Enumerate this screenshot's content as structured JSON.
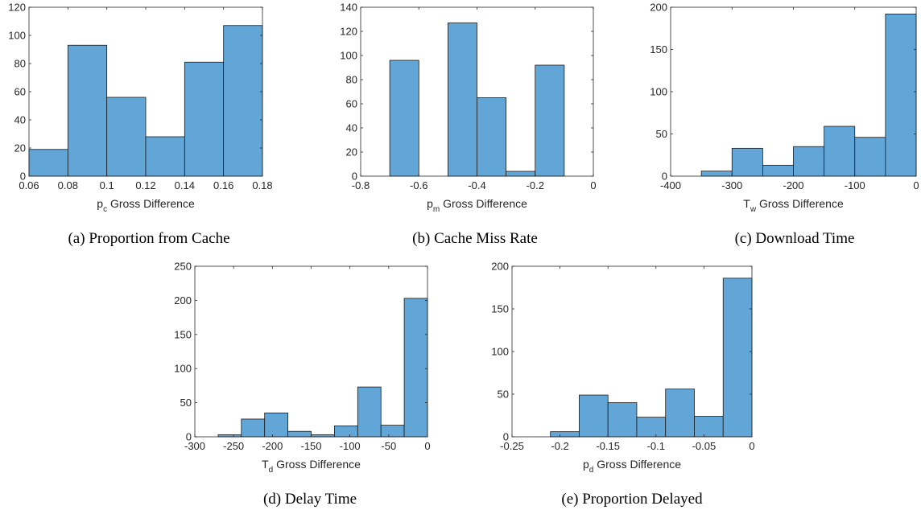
{
  "colors": {
    "bar": "#6baed6",
    "bar_fill": "#61a6d7",
    "edge": "#1a1a1a",
    "axis": "#262626"
  },
  "chart_data": [
    {
      "id": "a",
      "type": "bar",
      "caption": "(a) Proportion from Cache",
      "xlabel": {
        "main": "p",
        "sub": "c",
        "rest": " Gross Difference"
      },
      "xlim": [
        0.06,
        0.18
      ],
      "ylim": [
        0,
        120
      ],
      "xticks": [
        0.06,
        0.08,
        0.1,
        0.12,
        0.14,
        0.16,
        0.18
      ],
      "xtick_labels": [
        "0.06",
        "0.08",
        "0.1",
        "0.12",
        "0.14",
        "0.16",
        "0.18"
      ],
      "yticks": [
        0,
        20,
        40,
        60,
        80,
        100,
        120
      ],
      "ytick_labels": [
        "0",
        "20",
        "40",
        "60",
        "80",
        "100",
        "120"
      ],
      "bins": [
        [
          0.06,
          0.08
        ],
        [
          0.08,
          0.1
        ],
        [
          0.1,
          0.12
        ],
        [
          0.12,
          0.14
        ],
        [
          0.14,
          0.16
        ],
        [
          0.16,
          0.18
        ]
      ],
      "values": [
        19,
        93,
        56,
        28,
        81,
        107
      ]
    },
    {
      "id": "b",
      "type": "bar",
      "caption": "(b) Cache Miss Rate",
      "xlabel": {
        "main": "p",
        "sub": "m",
        "rest": " Gross Difference"
      },
      "xlim": [
        -0.8,
        0
      ],
      "ylim": [
        0,
        140
      ],
      "xticks": [
        -0.8,
        -0.6,
        -0.4,
        -0.2,
        0
      ],
      "xtick_labels": [
        "-0.8",
        "-0.6",
        "-0.4",
        "-0.2",
        "0"
      ],
      "yticks": [
        0,
        20,
        40,
        60,
        80,
        100,
        120,
        140
      ],
      "ytick_labels": [
        "0",
        "20",
        "40",
        "60",
        "80",
        "100",
        "120",
        "140"
      ],
      "bins": [
        [
          -0.7,
          -0.6
        ],
        [
          -0.6,
          -0.5
        ],
        [
          -0.5,
          -0.4
        ],
        [
          -0.4,
          -0.3
        ],
        [
          -0.3,
          -0.2
        ],
        [
          -0.2,
          -0.1
        ]
      ],
      "values": [
        96,
        0,
        127,
        65,
        4,
        92
      ]
    },
    {
      "id": "c",
      "type": "bar",
      "caption": "(c) Download Time",
      "xlabel": {
        "main": "T",
        "sub": "w",
        "rest": " Gross Difference"
      },
      "xlim": [
        -400,
        0
      ],
      "ylim": [
        0,
        200
      ],
      "xticks": [
        -400,
        -300,
        -200,
        -100,
        0
      ],
      "xtick_labels": [
        "-400",
        "-300",
        "-200",
        "-100",
        "0"
      ],
      "yticks": [
        0,
        50,
        100,
        150,
        200
      ],
      "ytick_labels": [
        "0",
        "50",
        "100",
        "150",
        "200"
      ],
      "bins": [
        [
          -350,
          -300
        ],
        [
          -300,
          -250
        ],
        [
          -250,
          -200
        ],
        [
          -200,
          -150
        ],
        [
          -150,
          -100
        ],
        [
          -100,
          -50
        ],
        [
          -50,
          0
        ]
      ],
      "values": [
        6,
        33,
        13,
        35,
        59,
        46,
        192
      ]
    },
    {
      "id": "d",
      "type": "bar",
      "caption": "(d) Delay Time",
      "xlabel": {
        "main": "T",
        "sub": "d",
        "rest": " Gross Difference"
      },
      "xlim": [
        -300,
        0
      ],
      "ylim": [
        0,
        250
      ],
      "xticks": [
        -300,
        -250,
        -200,
        -150,
        -100,
        -50,
        0
      ],
      "xtick_labels": [
        "-300",
        "-250",
        "-200",
        "-150",
        "-100",
        "-50",
        "0"
      ],
      "yticks": [
        0,
        50,
        100,
        150,
        200,
        250
      ],
      "ytick_labels": [
        "0",
        "50",
        "100",
        "150",
        "200",
        "250"
      ],
      "bins": [
        [
          -270,
          -240
        ],
        [
          -240,
          -210
        ],
        [
          -210,
          -180
        ],
        [
          -180,
          -150
        ],
        [
          -150,
          -120
        ],
        [
          -120,
          -90
        ],
        [
          -90,
          -60
        ],
        [
          -60,
          -30
        ],
        [
          -30,
          0
        ]
      ],
      "values": [
        3,
        26,
        35,
        8,
        3,
        16,
        73,
        17,
        203
      ]
    },
    {
      "id": "e",
      "type": "bar",
      "caption": "(e) Proportion Delayed",
      "xlabel": {
        "main": "p",
        "sub": "d",
        "rest": " Gross Difference"
      },
      "xlim": [
        -0.25,
        0
      ],
      "ylim": [
        0,
        200
      ],
      "xticks": [
        -0.25,
        -0.2,
        -0.15,
        -0.1,
        -0.05,
        0
      ],
      "xtick_labels": [
        "-0.25",
        "-0.2",
        "-0.15",
        "-0.1",
        "-0.05",
        "0"
      ],
      "yticks": [
        0,
        50,
        100,
        150,
        200
      ],
      "ytick_labels": [
        "0",
        "50",
        "100",
        "150",
        "200"
      ],
      "bins": [
        [
          -0.21,
          -0.18
        ],
        [
          -0.18,
          -0.15
        ],
        [
          -0.15,
          -0.12
        ],
        [
          -0.12,
          -0.09
        ],
        [
          -0.09,
          -0.06
        ],
        [
          -0.06,
          -0.03
        ],
        [
          -0.03,
          0
        ]
      ],
      "values": [
        6,
        49,
        40,
        23,
        56,
        24,
        186
      ]
    }
  ]
}
